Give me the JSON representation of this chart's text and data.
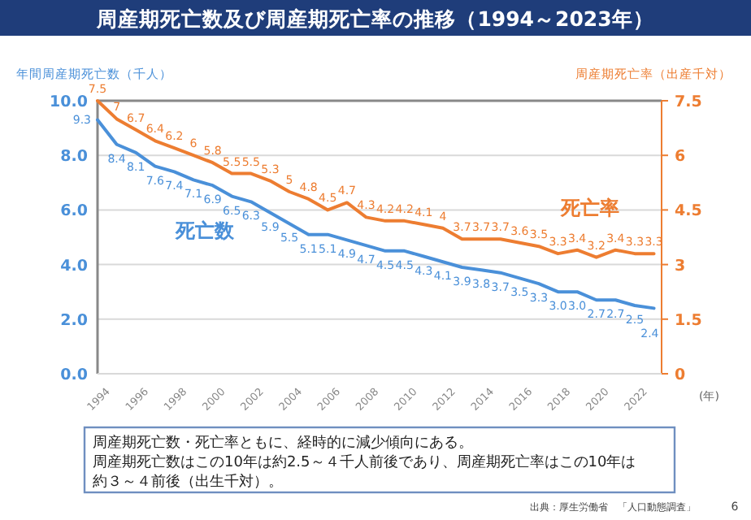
{
  "chart_data": {
    "type": "line",
    "title": "周産期死亡数及び周産期死亡率の推移（1994～2023年）",
    "ylabel": "年間周産期死亡数（千人）",
    "y2label": "周産期死亡率（出産千対）",
    "xlabel": "(年)",
    "x": [
      1994,
      1995,
      1996,
      1997,
      1998,
      1999,
      2000,
      2001,
      2002,
      2003,
      2004,
      2005,
      2006,
      2007,
      2008,
      2009,
      2010,
      2011,
      2012,
      2013,
      2014,
      2015,
      2016,
      2017,
      2018,
      2019,
      2020,
      2021,
      2022,
      2023
    ],
    "xlim": [
      1994,
      2023.4
    ],
    "xticks": [
      1994,
      1996,
      1998,
      2000,
      2002,
      2004,
      2006,
      2008,
      2010,
      2012,
      2014,
      2016,
      2018,
      2020,
      2022
    ],
    "ylim": [
      0,
      10
    ],
    "yticks": [
      {
        "value": 0,
        "label": "0.0"
      },
      {
        "value": 2,
        "label": "2.0"
      },
      {
        "value": 4,
        "label": "4.0"
      },
      {
        "value": 6,
        "label": "6.0"
      },
      {
        "value": 8,
        "label": "8.0"
      },
      {
        "value": 10,
        "label": "10.0"
      }
    ],
    "y2lim": [
      0,
      7.5
    ],
    "y2ticks": [
      0,
      1.5,
      3,
      4.5,
      6,
      7.5
    ],
    "grid": "y",
    "marker": "none",
    "line_style": "solid",
    "series": [
      {
        "name": "死亡数",
        "color": "#4a90d9",
        "values": [
          9.3,
          8.4,
          8.1,
          7.6,
          7.4,
          7.1,
          6.9,
          6.5,
          6.3,
          5.9,
          5.5,
          5.1,
          5.1,
          4.9,
          4.7,
          4.5,
          4.5,
          4.3,
          4.1,
          3.9,
          3.8,
          3.7,
          3.5,
          3.3,
          3.0,
          3.0,
          2.7,
          2.7,
          2.5,
          2.4
        ],
        "value_labels": [
          "9.3",
          "8.4",
          "8.1",
          "7.6",
          "7.4",
          "7.1",
          "6.9",
          "6.5",
          "6.3",
          "5.9",
          "5.5",
          "5.1",
          "5.1",
          "4.9",
          "4.7",
          "4.5",
          "4.5",
          "4.3",
          "4.1",
          "3.9",
          "3.8",
          "3.7",
          "3.5",
          "3.3",
          "3.0",
          "3.0",
          "2.7",
          "2.7",
          "2.5",
          "2.4"
        ]
      },
      {
        "name": "死亡率",
        "color": "#ed7d31",
        "axis": "y2",
        "values": [
          7.5,
          7,
          6.7,
          6.4,
          6.2,
          6,
          5.8,
          5.5,
          5.5,
          5.3,
          5,
          4.8,
          4.5,
          4.7,
          4.3,
          4.2,
          4.2,
          4.1,
          4,
          3.7,
          3.7,
          3.7,
          3.6,
          3.5,
          3.3,
          3.4,
          3.2,
          3.4,
          3.3,
          3.3
        ],
        "value_labels": [
          "7.5",
          "7",
          "6.7",
          "6.4",
          "6.2",
          "6",
          "5.8",
          "5.5",
          "5.5",
          "5.3",
          "5",
          "4.8",
          "4.5",
          "4.7",
          "4.3",
          "4.2",
          "4.2",
          "4.1",
          "4",
          "3.7",
          "3.7",
          "3.7",
          "3.6",
          "3.5",
          "3.3",
          "3.4",
          "3.2",
          "3.4",
          "3.3",
          "3.3"
        ]
      }
    ],
    "annotations": [
      "周産期死亡数・死亡率ともに、経時的に減少傾向にある。",
      "周産期死亡数はこの10年は約2.5～４千人前後であり、周産期死亡率はこの10年は",
      "約３～４前後（出生千対）。",
      "出典：厚生労働省　「人口動態調査」",
      "6"
    ]
  }
}
